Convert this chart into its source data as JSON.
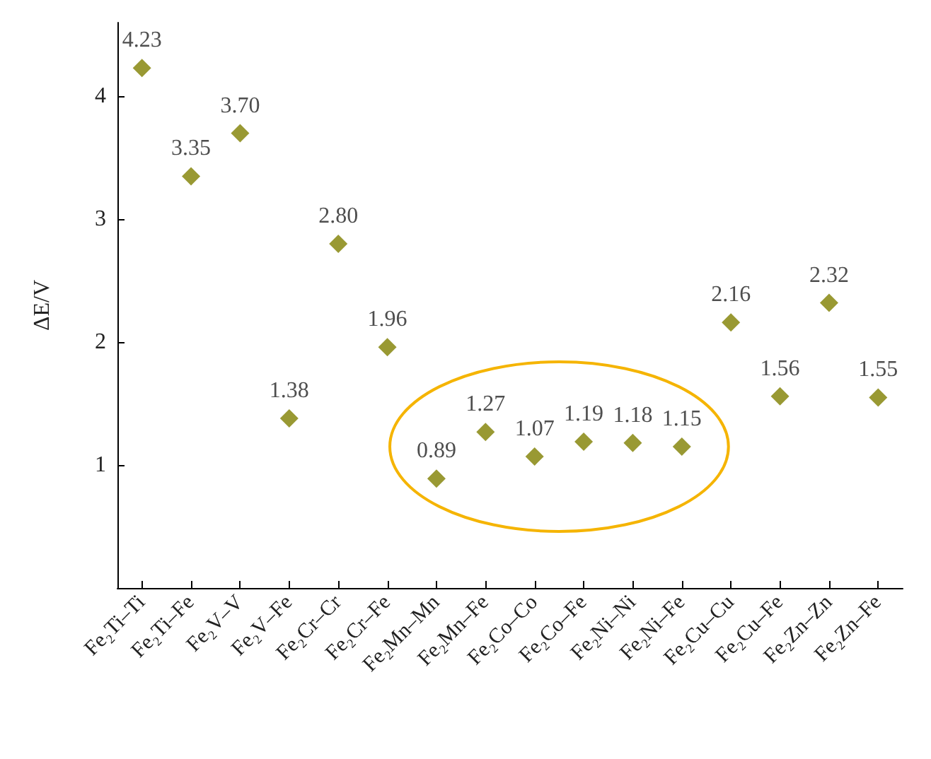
{
  "chart_data": {
    "type": "scatter",
    "ylabel": "ΔE/V",
    "categories": [
      "Fe₂Ti–Ti",
      "Fe₂Ti–Fe",
      "Fe₂V–V",
      "Fe₂V–Fe",
      "Fe₂Cr–Cr",
      "Fe₂Cr–Fe",
      "Fe₂Mn–Mn",
      "Fe₂Mn–Fe",
      "Fe₂Co–Co",
      "Fe₂Co–Fe",
      "Fe₂Ni–Ni",
      "Fe₂Ni–Fe",
      "Fe₂Cu–Cu",
      "Fe₂Cu–Fe",
      "Fe₂Zn–Zn",
      "Fe₂Zn–Fe"
    ],
    "values": [
      4.23,
      3.35,
      3.7,
      1.38,
      2.8,
      1.96,
      0.89,
      1.27,
      1.07,
      1.19,
      1.18,
      1.15,
      2.16,
      1.56,
      2.32,
      1.55
    ],
    "value_labels": [
      "4.23",
      "3.35",
      "3.70",
      "1.38",
      "2.80",
      "1.96",
      "0.89",
      "1.27",
      "1.07",
      "1.19",
      "1.18",
      "1.15",
      "2.16",
      "1.56",
      "2.32",
      "1.55"
    ],
    "color": "#7f7f00",
    "marker": "diamond",
    "ylim": [
      0,
      4.6
    ],
    "yticks": [
      1,
      2,
      3,
      4
    ],
    "grid": false
  }
}
